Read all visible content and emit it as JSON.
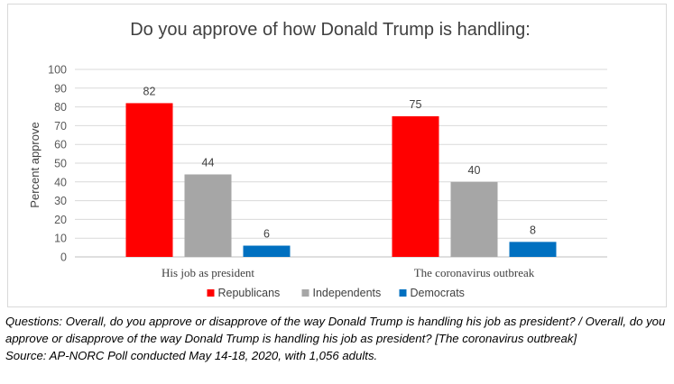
{
  "chart_data": {
    "type": "bar",
    "title": "Do you approve of how Donald Trump is handling:",
    "xlabel": "",
    "ylabel": "Percent approve",
    "ylim": [
      0,
      100
    ],
    "yticks": [
      0,
      10,
      20,
      30,
      40,
      50,
      60,
      70,
      80,
      90,
      100
    ],
    "grid": true,
    "legend_position": "bottom",
    "categories": [
      "His job as president",
      "The coronavirus outbreak"
    ],
    "series": [
      {
        "name": "Republicans",
        "color": "#ff0000",
        "values": [
          82,
          75
        ]
      },
      {
        "name": "Independents",
        "color": "#a6a6a6",
        "values": [
          44,
          40
        ]
      },
      {
        "name": "Democrats",
        "color": "#0070c0",
        "values": [
          6,
          8
        ]
      }
    ]
  },
  "notes": {
    "questions": "Questions: Overall, do you approve or disapprove of the way Donald Trump is handling his job as president? / Overall, do you approve or disapprove of the way Donald Trump is handling his job as president?  [The coronavirus outbreak]",
    "source": "Source: AP-NORC Poll conducted May 14-18, 2020, with 1,056 adults."
  }
}
